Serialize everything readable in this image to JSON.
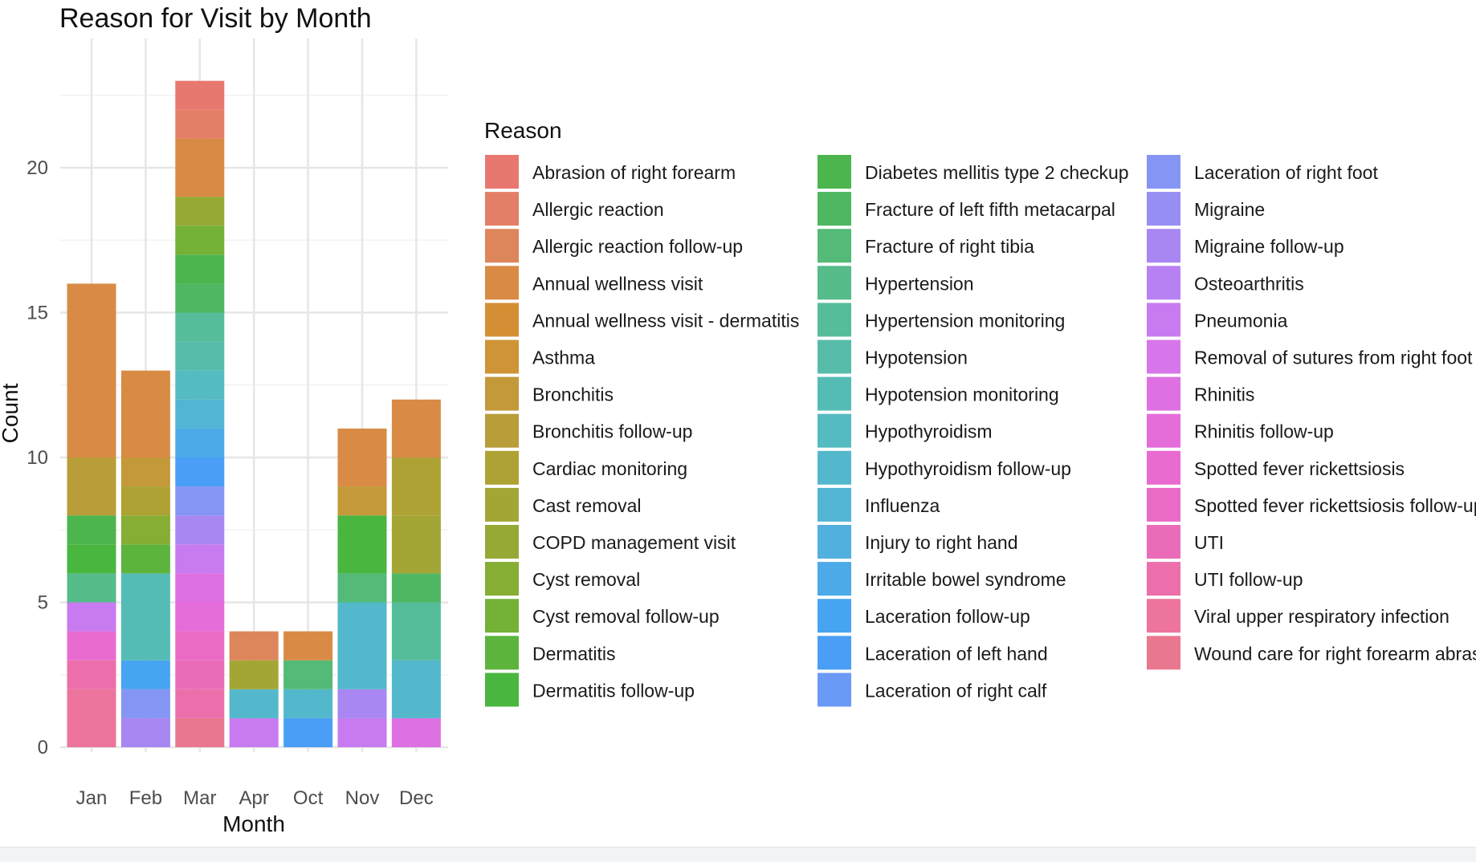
{
  "chart_data": {
    "type": "bar",
    "stacked": true,
    "title": "Reason for Visit by Month",
    "xlabel": "Month",
    "ylabel": "Count",
    "ylim": [
      0,
      23.5
    ],
    "yticks": [
      0,
      5,
      10,
      15,
      20
    ],
    "grid": true,
    "legend_title": "Reason",
    "legend_position": "right",
    "categories": [
      "Jan",
      "Feb",
      "Mar",
      "Apr",
      "Oct",
      "Nov",
      "Dec"
    ],
    "reasons": [
      "Abrasion of right forearm",
      "Allergic reaction",
      "Allergic reaction follow-up",
      "Annual wellness visit",
      "Annual wellness visit - dermatitis",
      "Asthma",
      "Bronchitis",
      "Bronchitis follow-up",
      "Cardiac monitoring",
      "Cast removal",
      "COPD management visit",
      "Cyst removal",
      "Cyst removal follow-up",
      "Dermatitis",
      "Dermatitis follow-up",
      "Diabetes mellitis type 2 checkup",
      "Fracture of left fifth metacarpal",
      "Fracture of right tibia",
      "Hypertension",
      "Hypertension monitoring",
      "Hypotension",
      "Hypotension monitoring",
      "Hypothyroidism",
      "Hypothyroidism follow-up",
      "Influenza",
      "Injury to right hand",
      "Irritable bowel syndrome",
      "Laceration follow-up",
      "Laceration of left hand",
      "Laceration of right calf",
      "Laceration of right foot",
      "Migraine",
      "Migraine follow-up",
      "Osteoarthritis",
      "Pneumonia",
      "Removal of sutures from right foot",
      "Rhinitis",
      "Rhinitis follow-up",
      "Spotted fever rickettsiosis",
      "Spotted fever rickettsiosis follow-up",
      "UTI",
      "UTI follow-up",
      "Viral upper respiratory infection",
      "Wound care for right forearm abrasion"
    ],
    "colors": [
      "#E8786F",
      "#E37F66",
      "#DE865B",
      "#D98B45",
      "#D48F34",
      "#CE9436",
      "#C3993A",
      "#B99D38",
      "#AEA235",
      "#A3A634",
      "#96A934",
      "#86AD34",
      "#74B137",
      "#5CB43D",
      "#49B63F",
      "#4DB54E",
      "#4FB661",
      "#53BA77",
      "#55BC8A",
      "#56BD9B",
      "#56BCA9",
      "#55BCB5",
      "#54BBC1",
      "#53B8CB",
      "#52B5D4",
      "#51B0DE",
      "#4CAAE8",
      "#47A4F0",
      "#4A9EF5",
      "#6B9AF6",
      "#8595F3",
      "#968EF2",
      "#A887F2",
      "#B881F3",
      "#C87BF0",
      "#D776EB",
      "#DF70E2",
      "#E56DDA",
      "#E96BD0",
      "#EA6BC5",
      "#EA6CB8",
      "#EC6FAB",
      "#EC749D",
      "#EA7790"
    ],
    "series_by_month": {
      "Jan": [
        [
          "Viral upper respiratory infection",
          2
        ],
        [
          "UTI follow-up",
          1
        ],
        [
          "Spotted fever rickettsiosis",
          1
        ],
        [
          "Pneumonia",
          1
        ],
        [
          "Influenza",
          0
        ],
        [
          "Hypertension",
          1
        ],
        [
          "Dermatitis follow-up",
          1
        ],
        [
          "Diabetes mellitis type 2 checkup",
          1
        ],
        [
          "Bronchitis follow-up",
          2
        ],
        [
          "Annual wellness visit",
          6
        ]
      ],
      "Feb": [
        [
          "Migraine follow-up",
          1
        ],
        [
          "Laceration of right foot",
          1
        ],
        [
          "Laceration follow-up",
          1
        ],
        [
          "Hypotension monitoring",
          3
        ],
        [
          "Dermatitis",
          1
        ],
        [
          "Cyst removal",
          1
        ],
        [
          "Cardiac monitoring",
          1
        ],
        [
          "Bronchitis",
          1
        ],
        [
          "Annual wellness visit",
          3
        ]
      ],
      "Mar": [
        [
          "Wound care for right forearm abrasion",
          1
        ],
        [
          "UTI follow-up",
          1
        ],
        [
          "UTI",
          1
        ],
        [
          "Spotted fever rickettsiosis follow-up",
          1
        ],
        [
          "Rhinitis follow-up",
          1
        ],
        [
          "Rhinitis",
          1
        ],
        [
          "Pneumonia",
          1
        ],
        [
          "Migraine follow-up",
          1
        ],
        [
          "Laceration of right foot",
          1
        ],
        [
          "Laceration of left hand",
          1
        ],
        [
          "Irritable bowel syndrome",
          1
        ],
        [
          "Influenza",
          1
        ],
        [
          "Hypothyroidism",
          1
        ],
        [
          "Hypotension",
          1
        ],
        [
          "Hypertension monitoring",
          1
        ],
        [
          "Fracture of left fifth metacarpal",
          1
        ],
        [
          "Diabetes mellitis type 2 checkup",
          1
        ],
        [
          "Cyst removal follow-up",
          1
        ],
        [
          "COPD management visit",
          1
        ],
        [
          "Annual wellness visit",
          2
        ],
        [
          "Allergic reaction",
          1
        ],
        [
          "Abrasion of right forearm",
          1
        ]
      ],
      "Apr": [
        [
          "Pneumonia",
          1
        ],
        [
          "Hypothyroidism follow-up",
          1
        ],
        [
          "Cast removal",
          1
        ],
        [
          "Allergic reaction follow-up",
          1
        ]
      ],
      "Oct": [
        [
          "Laceration of left hand",
          1
        ],
        [
          "Hypothyroidism follow-up",
          1
        ],
        [
          "Fracture of right tibia",
          1
        ],
        [
          "Annual wellness visit",
          1
        ]
      ],
      "Nov": [
        [
          "Pneumonia",
          1
        ],
        [
          "Migraine follow-up",
          1
        ],
        [
          "Hypothyroidism follow-up",
          3
        ],
        [
          "Fracture of right tibia",
          1
        ],
        [
          "Dermatitis follow-up",
          2
        ],
        [
          "Bronchitis",
          1
        ],
        [
          "Annual wellness visit",
          2
        ]
      ],
      "Dec": [
        [
          "Rhinitis",
          1
        ],
        [
          "Hypothyroidism follow-up",
          2
        ],
        [
          "Hypertension monitoring",
          2
        ],
        [
          "Fracture of left fifth metacarpal",
          1
        ],
        [
          "Cast removal",
          2
        ],
        [
          "Cardiac monitoring",
          2
        ],
        [
          "Annual wellness visit",
          2
        ]
      ]
    }
  }
}
